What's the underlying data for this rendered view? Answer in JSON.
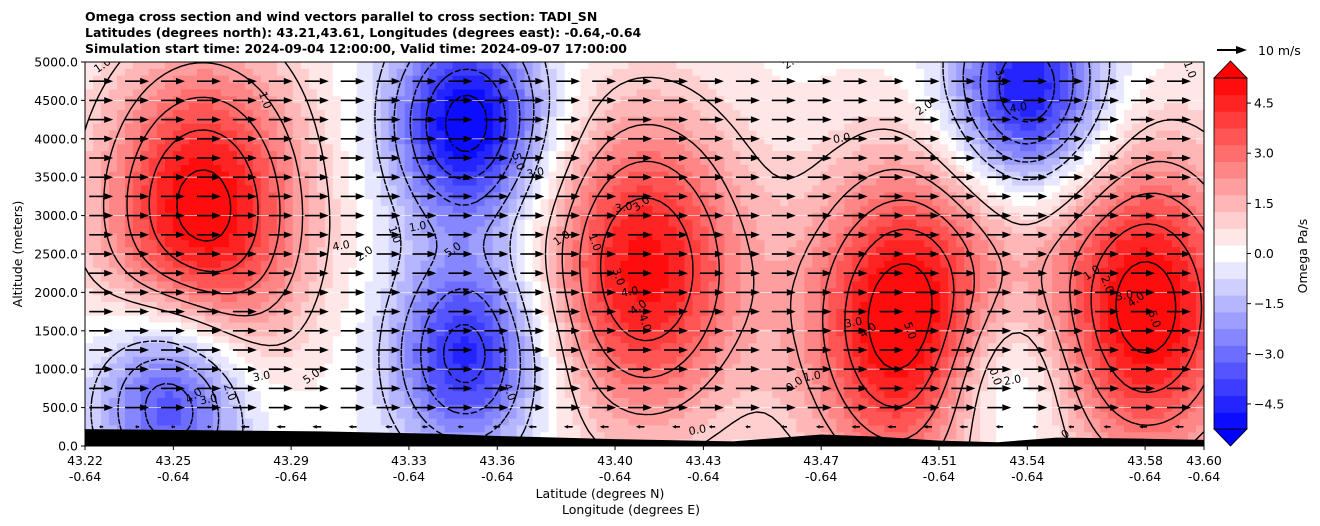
{
  "chart_data": {
    "type": "heatmap",
    "title_lines": [
      "Omega cross section and wind vectors parallel to cross section: TADI_SN",
      "Latitudes (degrees north): 43.21,43.61, Longitudes (degrees east): -0.64,-0.64",
      "Simulation start time: 2024-09-04 12:00:00, Valid time: 2024-09-07 17:00:00"
    ],
    "ylabel": "Altitude (meters)",
    "xlabel_lines": [
      "Latitude (degrees N)",
      "Longitude (degrees E)"
    ],
    "ylim": [
      0,
      5000
    ],
    "y_ticks": [
      "0.0",
      "500.0",
      "1000.0",
      "1500.0",
      "2000.0",
      "2500.0",
      "3000.0",
      "3500.0",
      "4000.0",
      "4500.0",
      "5000.0"
    ],
    "x_ticks": [
      {
        "lat": "43.22",
        "lon": "-0.64"
      },
      {
        "lat": "43.25",
        "lon": "-0.64"
      },
      {
        "lat": "43.29",
        "lon": "-0.64"
      },
      {
        "lat": "43.33",
        "lon": "-0.64"
      },
      {
        "lat": "43.36",
        "lon": "-0.64"
      },
      {
        "lat": "43.40",
        "lon": "-0.64"
      },
      {
        "lat": "43.43",
        "lon": "-0.64"
      },
      {
        "lat": "43.47",
        "lon": "-0.64"
      },
      {
        "lat": "43.51",
        "lon": "-0.64"
      },
      {
        "lat": "43.54",
        "lon": "-0.64"
      },
      {
        "lat": "43.58",
        "lon": "-0.64"
      },
      {
        "lat": "43.60",
        "lon": "-0.64"
      }
    ],
    "colorbar": {
      "label": "Omega Pa/s",
      "range": [
        -5.25,
        5.25
      ],
      "levels_step": 0.5,
      "extend": "both",
      "ticks": [
        "4.5",
        "3.0",
        "1.5",
        "0.0",
        "−1.5",
        "−3.0",
        "−4.5"
      ],
      "colormap": "bwr"
    },
    "quiver_key": {
      "label": "10 m/s",
      "speed_ms": 10
    },
    "omega_features": [
      {
        "sign": "positive",
        "lat_center": 43.26,
        "alt_center": 3000,
        "peak": 5.5
      },
      {
        "sign": "negative",
        "lat_center": 43.35,
        "alt_center": 4200,
        "peak": -5.5
      },
      {
        "sign": "negative",
        "lat_center": 43.35,
        "alt_center": 1200,
        "peak": -4.5
      },
      {
        "sign": "negative",
        "lat_center": 43.25,
        "alt_center": 700,
        "peak": -4.5
      },
      {
        "sign": "positive",
        "lat_center": 43.41,
        "alt_center": 2300,
        "peak": 5.0
      },
      {
        "sign": "positive",
        "lat_center": 43.5,
        "alt_center": 1600,
        "peak": 6.0
      },
      {
        "sign": "negative",
        "lat_center": 43.54,
        "alt_center": 4600,
        "peak": -5.0
      },
      {
        "sign": "negative",
        "lat_center": 43.53,
        "alt_center": 900,
        "peak": -2.5
      },
      {
        "sign": "positive",
        "lat_center": 43.58,
        "alt_center": 1800,
        "peak": 5.5
      }
    ],
    "contour_labels": [
      {
        "text": "1.0",
        "lat": 43.226,
        "alt": 4950
      },
      {
        "text": "1.0",
        "lat": 43.281,
        "alt": 4500
      },
      {
        "text": "4.0",
        "lat": 43.307,
        "alt": 2600
      },
      {
        "text": "2.0",
        "lat": 43.315,
        "alt": 2500
      },
      {
        "text": "1.0",
        "lat": 43.325,
        "alt": 2750
      },
      {
        "text": "1.0",
        "lat": 43.333,
        "alt": 2850
      },
      {
        "text": "5.0",
        "lat": 43.345,
        "alt": 2550
      },
      {
        "text": "5.0",
        "lat": 43.367,
        "alt": 3700
      },
      {
        "text": "3.0",
        "lat": 43.373,
        "alt": 3550
      },
      {
        "text": "1.0",
        "lat": 43.382,
        "alt": 2700
      },
      {
        "text": "1.0",
        "lat": 43.393,
        "alt": 2650
      },
      {
        "text": "3.0",
        "lat": 43.403,
        "alt": 3100
      },
      {
        "text": "3.0",
        "lat": 43.409,
        "alt": 3150
      },
      {
        "text": "3.0",
        "lat": 43.401,
        "alt": 2200
      },
      {
        "text": "4.0",
        "lat": 43.405,
        "alt": 2000
      },
      {
        "text": "4.0",
        "lat": 43.408,
        "alt": 1800
      },
      {
        "text": "4.0",
        "lat": 43.41,
        "alt": 1600
      },
      {
        "text": "0.0",
        "lat": 43.477,
        "alt": 4000
      },
      {
        "text": "2.0",
        "lat": 43.505,
        "alt": 4400
      },
      {
        "text": "3.0",
        "lat": 43.531,
        "alt": 4800
      },
      {
        "text": "4.0",
        "lat": 43.537,
        "alt": 4400
      },
      {
        "text": "2.0",
        "lat": 43.46,
        "alt": 5000
      },
      {
        "text": "1.0",
        "lat": 43.595,
        "alt": 4900
      },
      {
        "text": "3.0",
        "lat": 43.481,
        "alt": 1600
      },
      {
        "text": "4.0",
        "lat": 43.486,
        "alt": 1500
      },
      {
        "text": "5.0",
        "lat": 43.5,
        "alt": 1500
      },
      {
        "text": "1.0",
        "lat": 43.467,
        "alt": 900
      },
      {
        "text": "0.0",
        "lat": 43.461,
        "alt": 800
      },
      {
        "text": "0.0",
        "lat": 43.529,
        "alt": 900
      },
      {
        "text": "2.0",
        "lat": 43.535,
        "alt": 850
      },
      {
        "text": "1.0",
        "lat": 43.562,
        "alt": 2250
      },
      {
        "text": "2.0",
        "lat": 43.567,
        "alt": 2100
      },
      {
        "text": "3.0",
        "lat": 43.573,
        "alt": 1950
      },
      {
        "text": "4.0",
        "lat": 43.577,
        "alt": 1900
      },
      {
        "text": "5.0",
        "lat": 43.583,
        "alt": 1650
      },
      {
        "text": "3.0",
        "lat": 43.28,
        "alt": 900
      },
      {
        "text": "5.0",
        "lat": 43.297,
        "alt": 900
      },
      {
        "text": "2.0",
        "lat": 43.269,
        "alt": 700
      },
      {
        "text": "3.0",
        "lat": 43.262,
        "alt": 600
      },
      {
        "text": "4.0",
        "lat": 43.257,
        "alt": 650
      },
      {
        "text": "4.0",
        "lat": 43.364,
        "alt": 700
      },
      {
        "text": "0.0",
        "lat": 43.428,
        "alt": 200
      },
      {
        "text": "0",
        "lat": 43.553,
        "alt": 150
      }
    ],
    "terrain": {
      "color": "#000000",
      "description": "black terrain along the bottom of the section"
    }
  }
}
